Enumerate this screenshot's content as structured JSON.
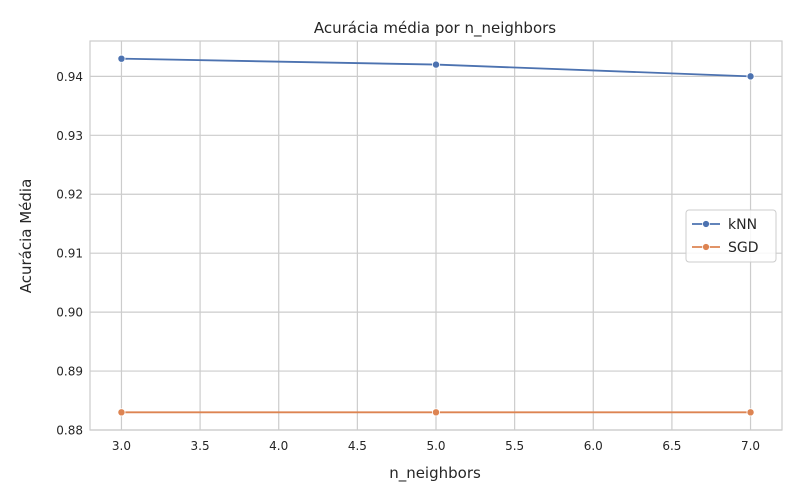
{
  "chart_data": {
    "type": "line",
    "title": "Acurácia média por n_neighbors",
    "xlabel": "n_neighbors",
    "ylabel": "Acurácia Média",
    "xlim": [
      2.8,
      7.2
    ],
    "ylim": [
      0.88,
      0.946
    ],
    "xticks": [
      3.0,
      3.5,
      4.0,
      4.5,
      5.0,
      5.5,
      6.0,
      6.5,
      7.0
    ],
    "xtick_labels": [
      "3.0",
      "3.5",
      "4.0",
      "4.5",
      "5.0",
      "5.5",
      "6.0",
      "6.5",
      "7.0"
    ],
    "yticks": [
      0.88,
      0.89,
      0.9,
      0.91,
      0.92,
      0.93,
      0.94
    ],
    "ytick_labels": [
      "0.88",
      "0.89",
      "0.90",
      "0.91",
      "0.92",
      "0.93",
      "0.94"
    ],
    "grid": true,
    "legend_position": "center-right",
    "x": [
      3,
      5,
      7
    ],
    "series": [
      {
        "name": "kNN",
        "values": [
          0.943,
          0.942,
          0.94
        ],
        "color": "#4c72b0",
        "marker": "circle"
      },
      {
        "name": "SGD",
        "values": [
          0.883,
          0.883,
          0.883
        ],
        "color": "#dd8452",
        "marker": "circle"
      }
    ]
  }
}
